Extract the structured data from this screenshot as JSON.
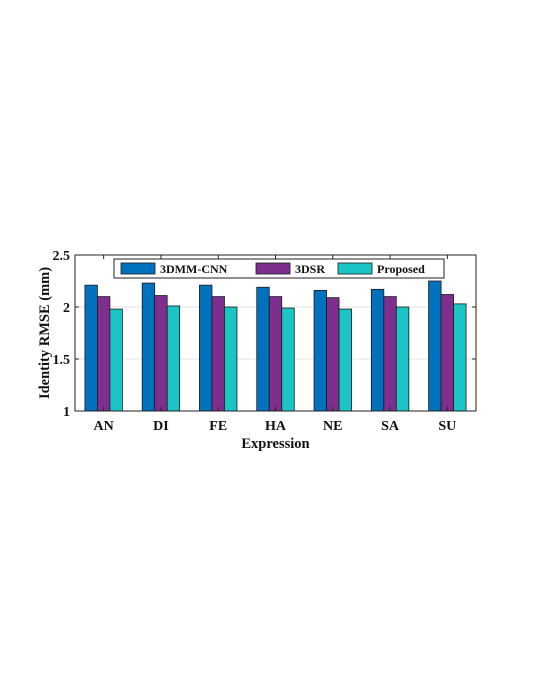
{
  "chart_data": {
    "type": "bar",
    "categories": [
      "AN",
      "DI",
      "FE",
      "HA",
      "NE",
      "SA",
      "SU"
    ],
    "series": [
      {
        "name": "3DMM-CNN",
        "color": "#0072BD",
        "values": [
          2.21,
          2.23,
          2.21,
          2.19,
          2.16,
          2.17,
          2.25
        ]
      },
      {
        "name": "3DSR",
        "color": "#7E2F8E",
        "values": [
          2.1,
          2.11,
          2.1,
          2.1,
          2.09,
          2.1,
          2.12
        ]
      },
      {
        "name": "Proposed",
        "color": "#1CC5C5",
        "values": [
          1.98,
          2.01,
          2.0,
          1.99,
          1.98,
          2.0,
          2.03
        ]
      }
    ],
    "xlabel": "Expression",
    "ylabel": "Identity RMSE (mm)",
    "ylim": [
      1,
      2.5
    ],
    "yticks": [
      "1",
      "1.5",
      "2",
      "2.5"
    ],
    "grid": true,
    "legend_position": "top, horizontal"
  }
}
